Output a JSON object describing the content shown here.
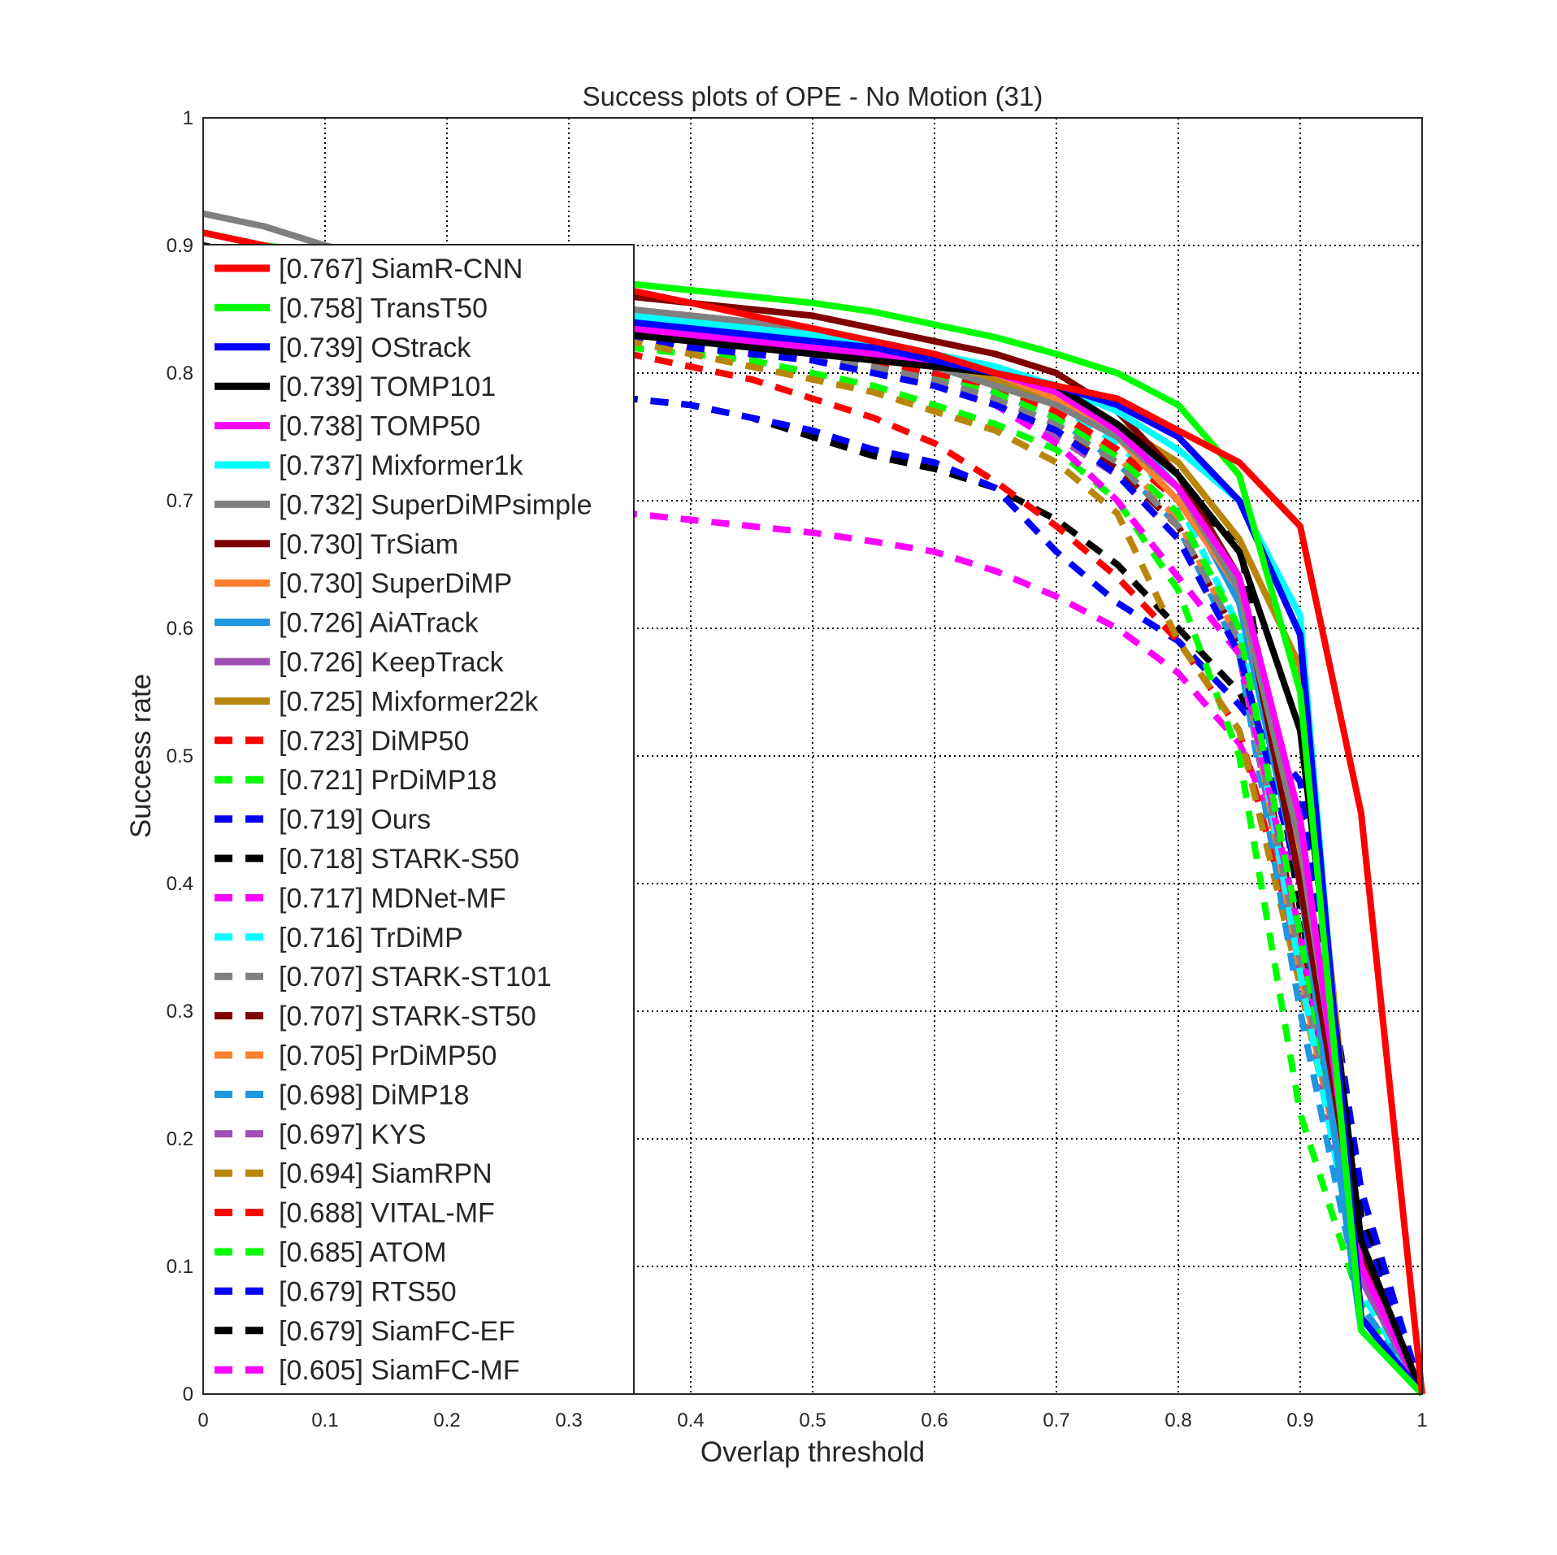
{
  "chart_data": {
    "type": "line",
    "title": "Success plots of OPE - No Motion (31)",
    "xlabel": "Overlap threshold",
    "ylabel": "Success rate",
    "xlim": [
      0,
      1
    ],
    "ylim": [
      0,
      1
    ],
    "grid": true,
    "legend_position": "left",
    "x_ticks": [
      "0",
      "0.1",
      "0.2",
      "0.3",
      "0.4",
      "0.5",
      "0.6",
      "0.7",
      "0.8",
      "0.9",
      "1"
    ],
    "y_ticks": [
      "0",
      "0.1",
      "0.2",
      "0.3",
      "0.4",
      "0.5",
      "0.6",
      "0.7",
      "0.8",
      "0.9",
      "1"
    ],
    "x": [
      0,
      0.05,
      0.1,
      0.15,
      0.2,
      0.25,
      0.3,
      0.35,
      0.4,
      0.45,
      0.5,
      0.55,
      0.6,
      0.65,
      0.7,
      0.75,
      0.8,
      0.85,
      0.9,
      0.95,
      1
    ],
    "series": [
      {
        "name": "[0.767] SiamR-CNN",
        "color": "#ff0000",
        "dash": false,
        "values": [
          0.91,
          0.9,
          0.89,
          0.885,
          0.88,
          0.875,
          0.87,
          0.865,
          0.855,
          0.845,
          0.835,
          0.825,
          0.815,
          0.8,
          0.79,
          0.78,
          0.755,
          0.73,
          0.68,
          0.455,
          0.0
        ]
      },
      {
        "name": "[0.758] TransT50",
        "color": "#00ff00",
        "dash": false,
        "values": [
          0.91,
          0.9,
          0.895,
          0.89,
          0.885,
          0.88,
          0.875,
          0.87,
          0.865,
          0.86,
          0.855,
          0.848,
          0.838,
          0.828,
          0.815,
          0.8,
          0.775,
          0.72,
          0.55,
          0.05,
          0.0
        ]
      },
      {
        "name": "[0.739] OStrack",
        "color": "#0000ff",
        "dash": false,
        "values": [
          0.91,
          0.9,
          0.89,
          0.88,
          0.87,
          0.86,
          0.85,
          0.84,
          0.835,
          0.83,
          0.825,
          0.82,
          0.81,
          0.8,
          0.79,
          0.775,
          0.75,
          0.7,
          0.595,
          0.06,
          0.0
        ]
      },
      {
        "name": "[0.739] TOMP101",
        "color": "#000000",
        "dash": false,
        "values": [
          0.9,
          0.89,
          0.88,
          0.87,
          0.86,
          0.85,
          0.84,
          0.83,
          0.825,
          0.82,
          0.815,
          0.81,
          0.805,
          0.8,
          0.79,
          0.76,
          0.72,
          0.66,
          0.52,
          0.12,
          0.0
        ]
      },
      {
        "name": "[0.738] TOMP50",
        "color": "#ff00ff",
        "dash": false,
        "values": [
          0.9,
          0.89,
          0.88,
          0.87,
          0.86,
          0.85,
          0.84,
          0.835,
          0.83,
          0.825,
          0.82,
          0.815,
          0.81,
          0.8,
          0.785,
          0.755,
          0.71,
          0.64,
          0.45,
          0.1,
          0.0
        ]
      },
      {
        "name": "[0.737] Mixformer1k",
        "color": "#00ffff",
        "dash": false,
        "values": [
          0.91,
          0.9,
          0.89,
          0.88,
          0.87,
          0.86,
          0.85,
          0.845,
          0.84,
          0.835,
          0.83,
          0.825,
          0.815,
          0.805,
          0.79,
          0.77,
          0.74,
          0.7,
          0.61,
          0.05,
          0.0
        ]
      },
      {
        "name": "[0.732] SuperDiMPsimple",
        "color": "#808080",
        "dash": false,
        "values": [
          0.925,
          0.915,
          0.9,
          0.89,
          0.88,
          0.87,
          0.86,
          0.85,
          0.845,
          0.84,
          0.83,
          0.82,
          0.805,
          0.79,
          0.775,
          0.75,
          0.71,
          0.63,
          0.43,
          0.12,
          0.0
        ]
      },
      {
        "name": "[0.730] TrSiam",
        "color": "#800000",
        "dash": false,
        "values": [
          0.91,
          0.9,
          0.89,
          0.88,
          0.875,
          0.87,
          0.865,
          0.86,
          0.855,
          0.85,
          0.845,
          0.835,
          0.825,
          0.815,
          0.8,
          0.77,
          0.72,
          0.64,
          0.4,
          0.11,
          0.0
        ]
      },
      {
        "name": "[0.730] SuperDiMP",
        "color": "#ff8030",
        "dash": false,
        "values": [
          0.91,
          0.9,
          0.89,
          0.88,
          0.87,
          0.86,
          0.855,
          0.85,
          0.845,
          0.84,
          0.83,
          0.82,
          0.81,
          0.8,
          0.78,
          0.75,
          0.7,
          0.63,
          0.42,
          0.12,
          0.0
        ]
      },
      {
        "name": "[0.726] AiATrack",
        "color": "#1e96e0",
        "dash": false,
        "values": [
          0.9,
          0.89,
          0.88,
          0.87,
          0.86,
          0.855,
          0.85,
          0.845,
          0.84,
          0.835,
          0.83,
          0.82,
          0.81,
          0.8,
          0.785,
          0.76,
          0.71,
          0.62,
          0.4,
          0.05,
          0.0
        ]
      },
      {
        "name": "[0.726] KeepTrack",
        "color": "#a050b4",
        "dash": false,
        "values": [
          0.9,
          0.89,
          0.88,
          0.87,
          0.865,
          0.86,
          0.855,
          0.85,
          0.845,
          0.84,
          0.835,
          0.825,
          0.815,
          0.8,
          0.78,
          0.75,
          0.7,
          0.63,
          0.42,
          0.09,
          0.0
        ]
      },
      {
        "name": "[0.725] Mixformer22k",
        "color": "#b8860b",
        "dash": false,
        "values": [
          0.9,
          0.89,
          0.88,
          0.87,
          0.86,
          0.85,
          0.845,
          0.84,
          0.835,
          0.83,
          0.825,
          0.815,
          0.805,
          0.795,
          0.78,
          0.76,
          0.73,
          0.67,
          0.57,
          0.1,
          0.0
        ]
      },
      {
        "name": "[0.723] DiMP50",
        "color": "#ff0000",
        "dash": true,
        "values": [
          0.9,
          0.89,
          0.88,
          0.87,
          0.86,
          0.85,
          0.84,
          0.83,
          0.825,
          0.82,
          0.815,
          0.81,
          0.8,
          0.79,
          0.77,
          0.74,
          0.7,
          0.63,
          0.4,
          0.11,
          0.0
        ]
      },
      {
        "name": "[0.721] PrDiMP18",
        "color": "#00ff00",
        "dash": true,
        "values": [
          0.9,
          0.89,
          0.88,
          0.87,
          0.86,
          0.85,
          0.84,
          0.83,
          0.825,
          0.82,
          0.815,
          0.81,
          0.8,
          0.785,
          0.765,
          0.735,
          0.69,
          0.6,
          0.36,
          0.1,
          0.0
        ]
      },
      {
        "name": "[0.719] Ours",
        "color": "#0000ff",
        "dash": true,
        "values": [
          0.9,
          0.89,
          0.88,
          0.87,
          0.86,
          0.85,
          0.84,
          0.83,
          0.82,
          0.815,
          0.81,
          0.8,
          0.79,
          0.775,
          0.755,
          0.72,
          0.67,
          0.58,
          0.4,
          0.13,
          0.0
        ]
      },
      {
        "name": "[0.718] STARK-S50",
        "color": "#000000",
        "dash": true,
        "values": [
          0.9,
          0.89,
          0.88,
          0.87,
          0.86,
          0.85,
          0.84,
          0.83,
          0.825,
          0.82,
          0.815,
          0.81,
          0.8,
          0.79,
          0.77,
          0.74,
          0.7,
          0.67,
          0.38,
          0.12,
          0.0
        ]
      },
      {
        "name": "[0.717] MDNet-MF",
        "color": "#ff00ff",
        "dash": true,
        "values": [
          0.9,
          0.89,
          0.88,
          0.87,
          0.86,
          0.85,
          0.84,
          0.83,
          0.82,
          0.815,
          0.81,
          0.8,
          0.79,
          0.775,
          0.745,
          0.7,
          0.64,
          0.58,
          0.36,
          0.11,
          0.0
        ]
      },
      {
        "name": "[0.716] TrDiMP",
        "color": "#00ffff",
        "dash": true,
        "values": [
          0.9,
          0.89,
          0.88,
          0.87,
          0.86,
          0.85,
          0.845,
          0.84,
          0.835,
          0.83,
          0.825,
          0.82,
          0.81,
          0.795,
          0.775,
          0.745,
          0.7,
          0.6,
          0.33,
          0.08,
          0.0
        ]
      },
      {
        "name": "[0.707] STARK-ST101",
        "color": "#808080",
        "dash": true,
        "values": [
          0.9,
          0.89,
          0.88,
          0.87,
          0.86,
          0.85,
          0.84,
          0.83,
          0.825,
          0.82,
          0.815,
          0.805,
          0.795,
          0.78,
          0.76,
          0.73,
          0.68,
          0.59,
          0.34,
          0.1,
          0.0
        ]
      },
      {
        "name": "[0.707] STARK-ST50",
        "color": "#800000",
        "dash": true,
        "values": [
          0.9,
          0.89,
          0.88,
          0.87,
          0.86,
          0.85,
          0.84,
          0.83,
          0.82,
          0.815,
          0.81,
          0.8,
          0.79,
          0.775,
          0.755,
          0.725,
          0.68,
          0.59,
          0.35,
          0.1,
          0.0
        ]
      },
      {
        "name": "[0.705] PrDiMP50",
        "color": "#ff8030",
        "dash": true,
        "values": [
          0.9,
          0.89,
          0.88,
          0.87,
          0.86,
          0.85,
          0.845,
          0.84,
          0.835,
          0.83,
          0.825,
          0.815,
          0.805,
          0.79,
          0.77,
          0.735,
          0.685,
          0.59,
          0.33,
          0.1,
          0.0
        ]
      },
      {
        "name": "[0.698] DiMP18",
        "color": "#1e96e0",
        "dash": true,
        "values": [
          0.9,
          0.89,
          0.88,
          0.87,
          0.86,
          0.85,
          0.845,
          0.84,
          0.835,
          0.83,
          0.825,
          0.815,
          0.8,
          0.785,
          0.765,
          0.73,
          0.68,
          0.58,
          0.3,
          0.07,
          0.0
        ]
      },
      {
        "name": "[0.697] KYS",
        "color": "#a050b4",
        "dash": true,
        "values": [
          0.9,
          0.89,
          0.88,
          0.87,
          0.86,
          0.85,
          0.84,
          0.83,
          0.825,
          0.82,
          0.81,
          0.8,
          0.79,
          0.775,
          0.75,
          0.72,
          0.67,
          0.58,
          0.33,
          0.09,
          0.0
        ]
      },
      {
        "name": "[0.694] SiamRPN",
        "color": "#b8860b",
        "dash": true,
        "values": [
          0.9,
          0.89,
          0.88,
          0.87,
          0.86,
          0.85,
          0.84,
          0.825,
          0.815,
          0.805,
          0.795,
          0.785,
          0.77,
          0.755,
          0.73,
          0.69,
          0.59,
          0.52,
          0.32,
          0.1,
          0.0
        ]
      },
      {
        "name": "[0.688] VITAL-MF",
        "color": "#ff0000",
        "dash": true,
        "values": [
          0.89,
          0.88,
          0.87,
          0.86,
          0.85,
          0.84,
          0.825,
          0.815,
          0.805,
          0.795,
          0.78,
          0.765,
          0.745,
          0.715,
          0.68,
          0.64,
          0.59,
          0.52,
          0.34,
          0.09,
          0.0
        ]
      },
      {
        "name": "[0.685] ATOM",
        "color": "#00ff00",
        "dash": true,
        "values": [
          0.89,
          0.88,
          0.87,
          0.86,
          0.85,
          0.84,
          0.83,
          0.82,
          0.815,
          0.81,
          0.8,
          0.79,
          0.775,
          0.76,
          0.74,
          0.7,
          0.63,
          0.5,
          0.22,
          0.07,
          0.0
        ]
      },
      {
        "name": "[0.679] RTS50",
        "color": "#0000ff",
        "dash": true,
        "values": [
          0.87,
          0.86,
          0.845,
          0.83,
          0.815,
          0.8,
          0.79,
          0.78,
          0.775,
          0.765,
          0.755,
          0.74,
          0.73,
          0.71,
          0.66,
          0.62,
          0.59,
          0.54,
          0.48,
          0.16,
          0.0
        ]
      },
      {
        "name": "[0.679] SiamFC-EF",
        "color": "#000000",
        "dash": true,
        "values": [
          0.87,
          0.86,
          0.845,
          0.83,
          0.815,
          0.8,
          0.79,
          0.78,
          0.775,
          0.765,
          0.75,
          0.735,
          0.725,
          0.71,
          0.685,
          0.65,
          0.6,
          0.55,
          0.46,
          0.14,
          0.0
        ]
      },
      {
        "name": "[0.605] SiamFC-MF",
        "color": "#ff00ff",
        "dash": true,
        "values": [
          0.78,
          0.76,
          0.745,
          0.73,
          0.72,
          0.71,
          0.7,
          0.69,
          0.685,
          0.68,
          0.675,
          0.668,
          0.66,
          0.645,
          0.625,
          0.6,
          0.565,
          0.51,
          0.4,
          0.12,
          0.0
        ]
      }
    ]
  }
}
